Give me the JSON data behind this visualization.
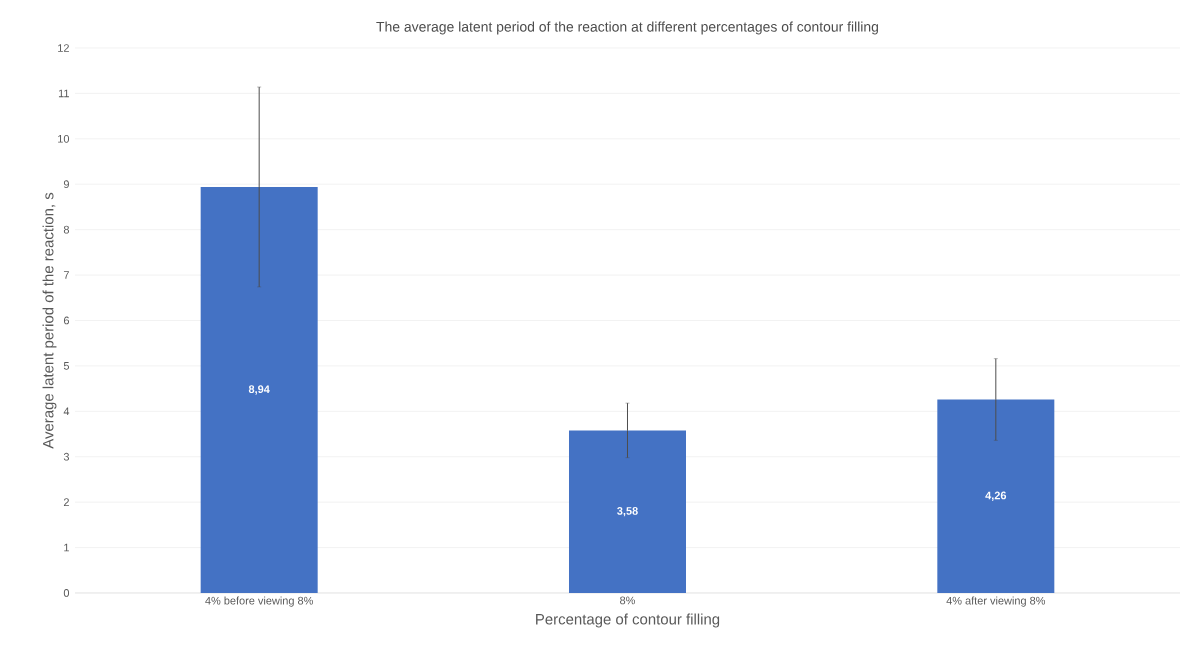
{
  "chart_data": {
    "type": "bar",
    "title": "The average latent period of the reaction at different percentages of contour filling",
    "xlabel": "Percentage of contour filling",
    "ylabel": "Average latent period of the reaction, s",
    "categories": [
      "4% before viewing 8%",
      "8%",
      "4% after viewing 8%"
    ],
    "values": [
      8.94,
      3.58,
      4.26
    ],
    "errors": [
      2.2,
      0.6,
      0.9
    ],
    "value_labels": [
      "8,94",
      "3,58",
      "4,26"
    ],
    "color": "#4472c4",
    "ylim": [
      0,
      12
    ],
    "yticks": [
      0,
      1,
      2,
      3,
      4,
      5,
      6,
      7,
      8,
      9,
      10,
      11,
      12
    ],
    "grid": "y"
  }
}
